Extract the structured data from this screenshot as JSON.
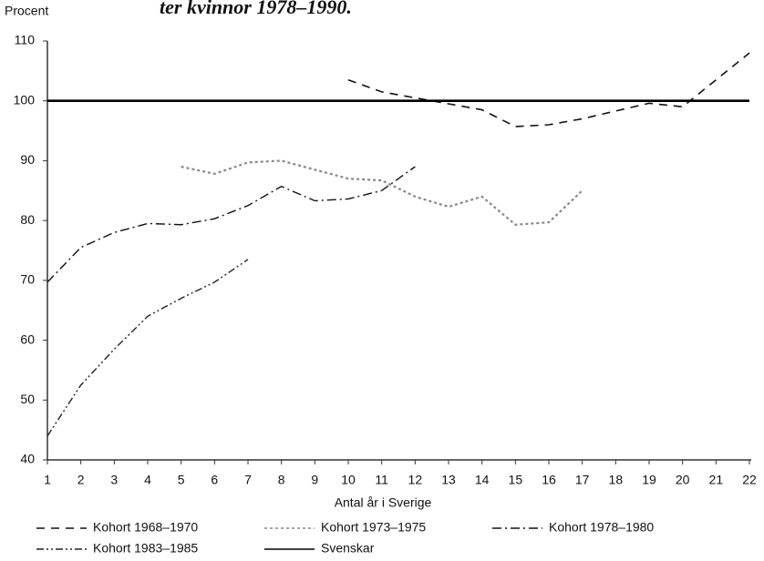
{
  "chart_data": {
    "type": "line",
    "title": "ter kvinnor 1978–1990.",
    "y_label": "Procent",
    "x_label": "Antal år i Sverige",
    "x": [
      1,
      2,
      3,
      4,
      5,
      6,
      7,
      8,
      9,
      10,
      11,
      12,
      13,
      14,
      15,
      16,
      17,
      18,
      19,
      20,
      21,
      22
    ],
    "xlim": [
      1,
      22
    ],
    "xticks": [
      1,
      2,
      3,
      4,
      5,
      6,
      7,
      8,
      9,
      10,
      11,
      12,
      13,
      14,
      15,
      16,
      17,
      18,
      19,
      20,
      21,
      22
    ],
    "ylim": [
      40,
      110
    ],
    "yticks": [
      40,
      50,
      60,
      70,
      80,
      90,
      100,
      110
    ],
    "series": [
      {
        "name": "Kohort 1968–1970",
        "color": "#111111",
        "values": [
          null,
          null,
          null,
          null,
          null,
          null,
          null,
          null,
          null,
          103.5,
          101.5,
          100.5,
          99.5,
          98.5,
          95.7,
          96,
          97,
          98.3,
          99.6,
          99,
          103.5,
          108
        ]
      },
      {
        "name": "Kohort 1973–1975",
        "color": "#888888",
        "values": [
          null,
          null,
          null,
          null,
          89,
          87.8,
          89.7,
          90,
          88.5,
          87,
          86.7,
          84,
          82.3,
          84,
          79.3,
          79.7,
          85,
          null,
          null,
          null,
          null,
          null
        ]
      },
      {
        "name": "Kohort 1978–1980",
        "color": "#111111",
        "values": [
          69.7,
          75.5,
          78,
          79.5,
          79.3,
          80.3,
          82.5,
          85.7,
          83.3,
          83.6,
          85,
          89,
          null,
          null,
          null,
          null,
          null,
          null,
          null,
          null,
          null,
          null
        ]
      },
      {
        "name": "Kohort 1983–1985",
        "color": "#222222",
        "values": [
          44,
          52.5,
          58.5,
          64,
          67,
          69.7,
          73.5,
          null,
          null,
          null,
          null,
          null,
          null,
          null,
          null,
          null,
          null,
          null,
          null,
          null,
          null,
          null
        ]
      },
      {
        "name": "Svenskar",
        "color": "#000000",
        "values": [
          100,
          100,
          100,
          100,
          100,
          100,
          100,
          100,
          100,
          100,
          100,
          100,
          100,
          100,
          100,
          100,
          100,
          100,
          100,
          100,
          100,
          100
        ]
      }
    ]
  }
}
